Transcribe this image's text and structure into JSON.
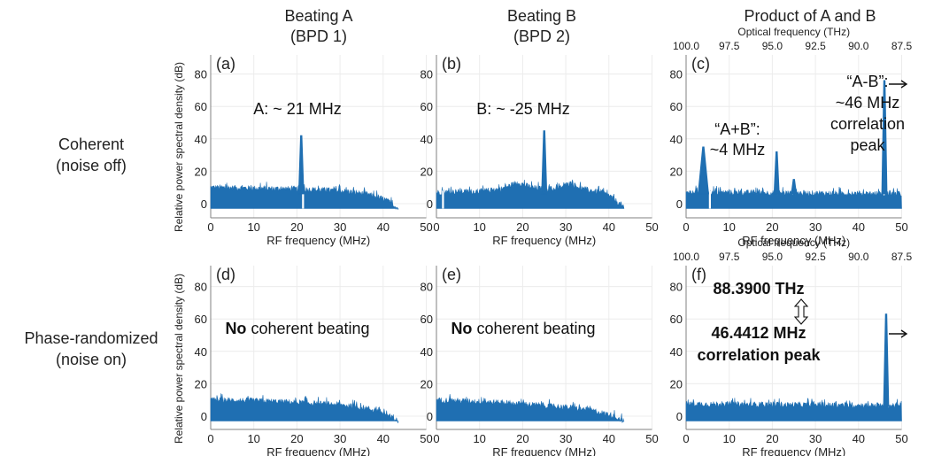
{
  "column_titles": [
    [
      "Beating A",
      "(BPD 1)"
    ],
    [
      "Beating B",
      "(BPD 2)"
    ],
    [
      "Product of A and B"
    ]
  ],
  "row_titles": [
    [
      "Coherent",
      "(noise off)"
    ],
    [
      "Phase-randomized",
      "(noise on)"
    ]
  ],
  "ylabel": "Relative power spectral density (dB)",
  "xlabel": "RF frequency (MHz)",
  "top_axis_label": "Optical frequency (THz)",
  "top_axis_ticks": [
    "100.0",
    "97.5",
    "95.0",
    "92.5",
    "90.0",
    "87.5"
  ],
  "x_ticks": [
    "0",
    "10",
    "20",
    "30",
    "40",
    "50"
  ],
  "y_ticks": [
    "0",
    "20",
    "40",
    "60",
    "80"
  ],
  "colors": {
    "series": "#1f6fb2",
    "axis": "#808080",
    "grid": "#ececec",
    "text": "#222222"
  },
  "chart_data": [
    {
      "panel": "(a)",
      "type": "area",
      "grid": true,
      "xlabel": "RF frequency (MHz)",
      "ylabel": "Relative power spectral density (dB)",
      "xlim": [
        0,
        50
      ],
      "ylim": [
        -4,
        82
      ],
      "annotation_lines": [
        {
          "text": "A: ~ 21 MHz",
          "bold": false
        }
      ],
      "floor": [
        [
          0,
          10
        ],
        [
          10,
          9.5
        ],
        [
          20,
          9
        ],
        [
          30,
          8
        ],
        [
          36,
          6
        ],
        [
          40,
          3
        ],
        [
          42,
          0
        ],
        [
          43.5,
          -3
        ]
      ],
      "peaks": [
        {
          "x": 21,
          "y": 42
        }
      ],
      "notch": {
        "x": 21.4
      }
    },
    {
      "panel": "(b)",
      "type": "area",
      "grid": true,
      "xlabel": "RF frequency (MHz)",
      "ylabel": "",
      "xlim": [
        0,
        50
      ],
      "ylim": [
        -4,
        82
      ],
      "annotation_lines": [
        {
          "text": "B: ~ -25 MHz",
          "bold": false
        }
      ],
      "floor": [
        [
          0,
          7
        ],
        [
          10,
          7.5
        ],
        [
          15,
          9
        ],
        [
          19,
          13
        ],
        [
          22,
          10
        ],
        [
          25,
          9
        ],
        [
          28,
          9
        ],
        [
          31,
          12.5
        ],
        [
          34,
          9
        ],
        [
          38,
          7
        ],
        [
          40,
          5
        ],
        [
          42,
          1
        ],
        [
          43.5,
          -3
        ]
      ],
      "peaks": [
        {
          "x": 25,
          "y": 45
        }
      ],
      "notch": {
        "x": 1.5
      }
    },
    {
      "panel": "(c)",
      "type": "area",
      "grid": true,
      "xlabel": "RF frequency (MHz)",
      "ylabel": "",
      "top_xlabel": "Optical frequency (THz)",
      "xlim": [
        0,
        50
      ],
      "ylim": [
        -4,
        82
      ],
      "annotation_lines": [
        {
          "text": "“A+B”:",
          "bold": false
        },
        {
          "text": "~4 MHz",
          "bold": false
        },
        {
          "text": "“A-B”:",
          "bold": false
        },
        {
          "text": "~46 MHz",
          "bold": false
        },
        {
          "text": "correlation",
          "bold": false
        },
        {
          "text": "peak",
          "bold": false
        }
      ],
      "floor": [
        [
          0,
          7
        ],
        [
          50,
          6
        ]
      ],
      "peaks": [
        {
          "x": 4,
          "y": 35
        },
        {
          "x": 21,
          "y": 32
        },
        {
          "x": 25,
          "y": 15
        },
        {
          "x": 46,
          "y": 76
        }
      ],
      "notch": {
        "x": 5.5
      }
    },
    {
      "panel": "(d)",
      "type": "area",
      "grid": true,
      "xlabel": "RF frequency (MHz)",
      "ylabel": "Relative power spectral density (dB)",
      "xlim": [
        0,
        50
      ],
      "ylim": [
        -4,
        82
      ],
      "annotation_lines": [
        {
          "bold_prefix": "No",
          "text": " coherent beating"
        }
      ],
      "floor": [
        [
          0,
          10
        ],
        [
          10,
          9.5
        ],
        [
          20,
          8.5
        ],
        [
          30,
          7
        ],
        [
          36,
          5
        ],
        [
          40,
          2
        ],
        [
          42,
          -1
        ],
        [
          43.5,
          -3
        ]
      ],
      "peaks": [],
      "notch": null
    },
    {
      "panel": "(e)",
      "type": "area",
      "grid": true,
      "xlabel": "RF frequency (MHz)",
      "ylabel": "",
      "xlim": [
        0,
        50
      ],
      "ylim": [
        -4,
        82
      ],
      "annotation_lines": [
        {
          "bold_prefix": "No",
          "text": " coherent beating"
        }
      ],
      "floor": [
        [
          0,
          10
        ],
        [
          10,
          9
        ],
        [
          20,
          7.5
        ],
        [
          30,
          5.5
        ],
        [
          36,
          3.5
        ],
        [
          40,
          1
        ],
        [
          42,
          -1
        ],
        [
          43.5,
          -3
        ]
      ],
      "peaks": [],
      "notch": null
    },
    {
      "panel": "(f)",
      "type": "area",
      "grid": true,
      "xlabel": "RF frequency (MHz)",
      "ylabel": "",
      "top_xlabel": "Optical frequency (THz)",
      "xlim": [
        0,
        50
      ],
      "ylim": [
        -4,
        82
      ],
      "annotation_lines": [
        {
          "text": "88.3900 THz",
          "bold": true
        },
        {
          "text": "46.4412 MHz",
          "bold": true
        },
        {
          "text": "correlation peak",
          "bold": true
        }
      ],
      "floor": [
        [
          0,
          7.5
        ],
        [
          50,
          6.5
        ]
      ],
      "peaks": [
        {
          "x": 46.4,
          "y": 63
        }
      ],
      "notch": null
    }
  ]
}
